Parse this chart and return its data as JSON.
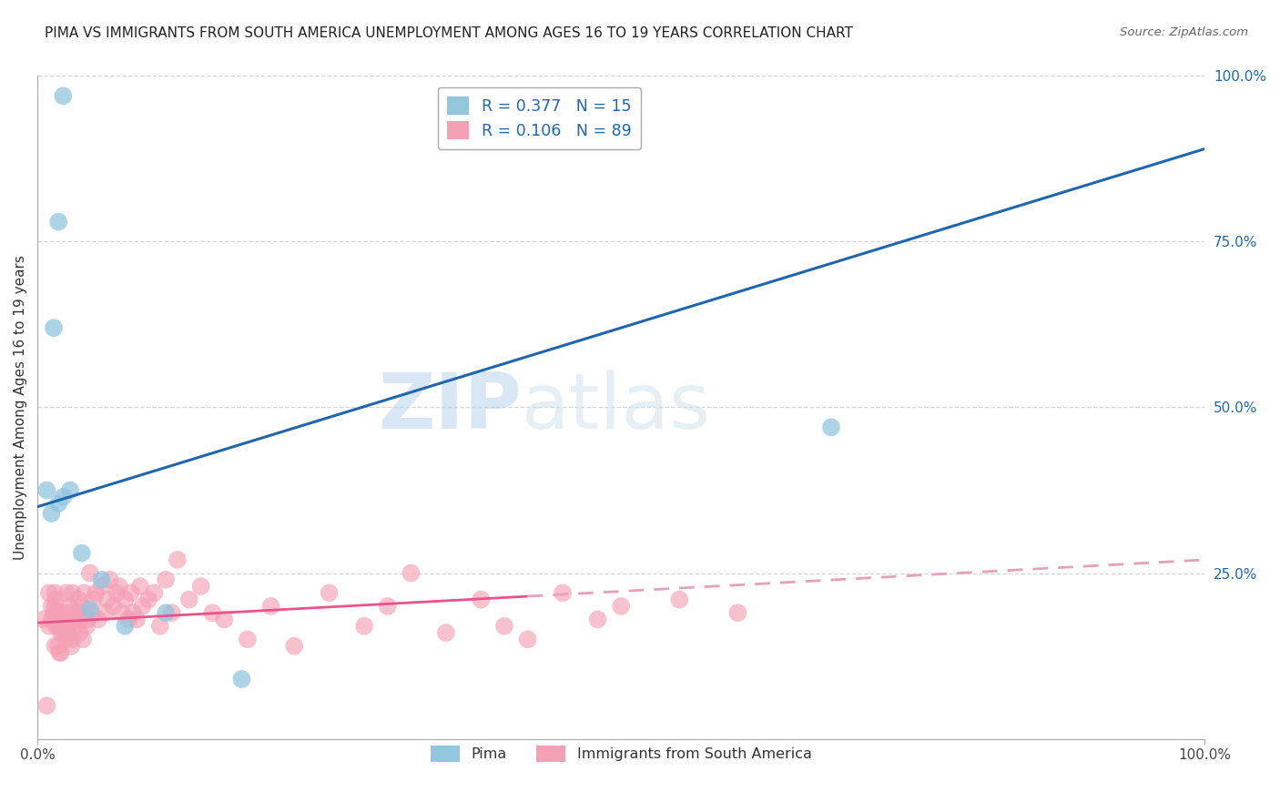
{
  "title": "PIMA VS IMMIGRANTS FROM SOUTH AMERICA UNEMPLOYMENT AMONG AGES 16 TO 19 YEARS CORRELATION CHART",
  "source": "Source: ZipAtlas.com",
  "ylabel": "Unemployment Among Ages 16 to 19 years",
  "xlim": [
    0.0,
    1.0
  ],
  "ylim": [
    0.0,
    1.0
  ],
  "xticklabels": [
    "0.0%",
    "100.0%"
  ],
  "ytick_right": [
    "25.0%",
    "50.0%",
    "75.0%",
    "100.0%"
  ],
  "ytick_right_vals": [
    0.25,
    0.5,
    0.75,
    1.0
  ],
  "group1_color": "#92c5de",
  "group2_color": "#f4a0b5",
  "group1_label": "Pima",
  "group2_label": "Immigrants from South America",
  "R1": "0.377",
  "N1": "15",
  "R2": "0.106",
  "N2": "89",
  "line1_color": "#2166ac",
  "line2_color": "#e8538a",
  "line2_dash_color": "#e8a0ba",
  "watermark_zip": "ZIP",
  "watermark_atlas": "atlas",
  "title_fontsize": 11,
  "background_color": "#ffffff",
  "pima_x": [
    0.022,
    0.018,
    0.014,
    0.008,
    0.012,
    0.028,
    0.022,
    0.018,
    0.038,
    0.055,
    0.045,
    0.075,
    0.11,
    0.68,
    0.175
  ],
  "pima_y": [
    0.97,
    0.78,
    0.62,
    0.375,
    0.34,
    0.375,
    0.365,
    0.355,
    0.28,
    0.24,
    0.195,
    0.17,
    0.19,
    0.47,
    0.09
  ],
  "sa_x": [
    0.005,
    0.008,
    0.01,
    0.01,
    0.012,
    0.012,
    0.014,
    0.015,
    0.015,
    0.015,
    0.016,
    0.016,
    0.017,
    0.018,
    0.018,
    0.019,
    0.02,
    0.02,
    0.02,
    0.022,
    0.022,
    0.023,
    0.024,
    0.025,
    0.025,
    0.026,
    0.027,
    0.028,
    0.029,
    0.03,
    0.03,
    0.032,
    0.033,
    0.034,
    0.035,
    0.036,
    0.037,
    0.038,
    0.039,
    0.04,
    0.04,
    0.042,
    0.043,
    0.045,
    0.046,
    0.048,
    0.05,
    0.052,
    0.055,
    0.058,
    0.06,
    0.062,
    0.065,
    0.068,
    0.07,
    0.072,
    0.075,
    0.078,
    0.08,
    0.082,
    0.085,
    0.088,
    0.09,
    0.095,
    0.1,
    0.105,
    0.11,
    0.115,
    0.12,
    0.13,
    0.14,
    0.15,
    0.16,
    0.18,
    0.2,
    0.22,
    0.25,
    0.28,
    0.3,
    0.32,
    0.35,
    0.38,
    0.4,
    0.42,
    0.45,
    0.48,
    0.5,
    0.55,
    0.6
  ],
  "sa_y": [
    0.18,
    0.05,
    0.17,
    0.22,
    0.2,
    0.18,
    0.19,
    0.14,
    0.2,
    0.22,
    0.17,
    0.21,
    0.19,
    0.14,
    0.17,
    0.13,
    0.13,
    0.16,
    0.19,
    0.16,
    0.17,
    0.18,
    0.15,
    0.17,
    0.22,
    0.19,
    0.16,
    0.2,
    0.14,
    0.15,
    0.22,
    0.18,
    0.19,
    0.17,
    0.21,
    0.16,
    0.18,
    0.2,
    0.15,
    0.19,
    0.22,
    0.17,
    0.18,
    0.25,
    0.19,
    0.21,
    0.22,
    0.18,
    0.23,
    0.19,
    0.21,
    0.24,
    0.2,
    0.22,
    0.23,
    0.19,
    0.21,
    0.18,
    0.22,
    0.19,
    0.18,
    0.23,
    0.2,
    0.21,
    0.22,
    0.17,
    0.24,
    0.19,
    0.27,
    0.21,
    0.23,
    0.19,
    0.18,
    0.15,
    0.2,
    0.14,
    0.22,
    0.17,
    0.2,
    0.25,
    0.16,
    0.21,
    0.17,
    0.15,
    0.22,
    0.18,
    0.2,
    0.21,
    0.19
  ],
  "line1_x0": 0.0,
  "line1_y0": 0.35,
  "line1_x1": 1.0,
  "line1_y1": 0.89,
  "line2_x0": 0.0,
  "line2_y0": 0.175,
  "line2_x1": 1.0,
  "line2_y1": 0.27,
  "line2_solid_end": 0.42
}
